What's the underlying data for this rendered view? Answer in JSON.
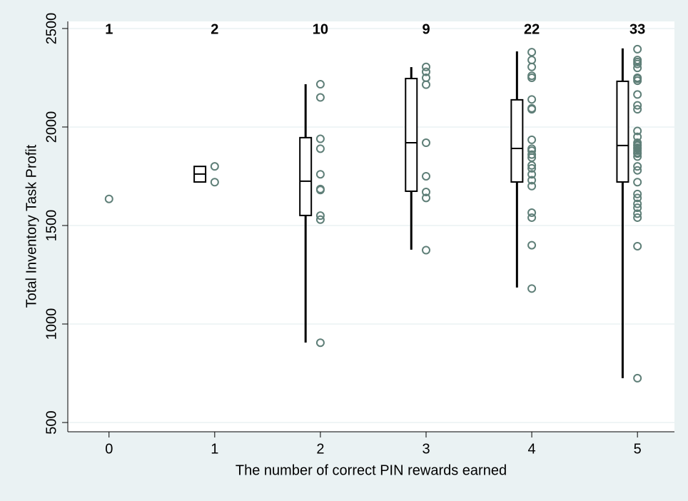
{
  "chart_data": {
    "type": "box",
    "xlabel": "The number of correct PIN rewards earned",
    "ylabel": "Total Inventory Task Profit",
    "xlim": [
      -0.39,
      5.35
    ],
    "xticks": [
      0,
      1,
      2,
      3,
      4,
      5
    ],
    "ylim": [
      453,
      2536
    ],
    "yticks": [
      500,
      1000,
      1500,
      2000,
      2500
    ],
    "grid": true,
    "point_color": "#5f7f78",
    "box_color": "#000000",
    "counts": [
      1,
      2,
      10,
      9,
      22,
      33
    ],
    "groups": [
      {
        "x": 0,
        "box": null,
        "values": [
          1635
        ]
      },
      {
        "x": 1,
        "box": {
          "low": null,
          "q1": 1721,
          "median": 1761,
          "q3": 1800,
          "high": null
        },
        "values": [
          1800,
          1720
        ]
      },
      {
        "x": 2,
        "box": {
          "low": 906,
          "q1": 1551,
          "median": 1725,
          "q3": 1946,
          "high": 2217
        },
        "values": [
          2217,
          2150,
          1940,
          1890,
          1760,
          1685,
          1680,
          1550,
          1530,
          905
        ]
      },
      {
        "x": 3,
        "box": {
          "low": 1377,
          "q1": 1674,
          "median": 1920,
          "q3": 2246,
          "high": 2304
        },
        "values": [
          2305,
          2280,
          2250,
          2215,
          1920,
          1750,
          1670,
          1640,
          1375
        ]
      },
      {
        "x": 4,
        "box": {
          "low": 1185,
          "q1": 1721,
          "median": 1891,
          "q3": 2138,
          "high": 2384
        },
        "values": [
          2380,
          2340,
          2305,
          2260,
          2250,
          2140,
          2095,
          2090,
          1935,
          1890,
          1880,
          1860,
          1845,
          1805,
          1790,
          1760,
          1730,
          1700,
          1565,
          1540,
          1400,
          1180
        ]
      },
      {
        "x": 5,
        "box": {
          "low": 725,
          "q1": 1721,
          "median": 1906,
          "q3": 2232,
          "high": 2399
        },
        "values": [
          2395,
          2340,
          2330,
          2320,
          2300,
          2250,
          2245,
          2235,
          2165,
          2110,
          2090,
          1980,
          1950,
          1920,
          1910,
          1905,
          1895,
          1890,
          1880,
          1870,
          1865,
          1850,
          1800,
          1780,
          1720,
          1660,
          1640,
          1610,
          1590,
          1560,
          1540,
          1395,
          725
        ]
      }
    ]
  }
}
